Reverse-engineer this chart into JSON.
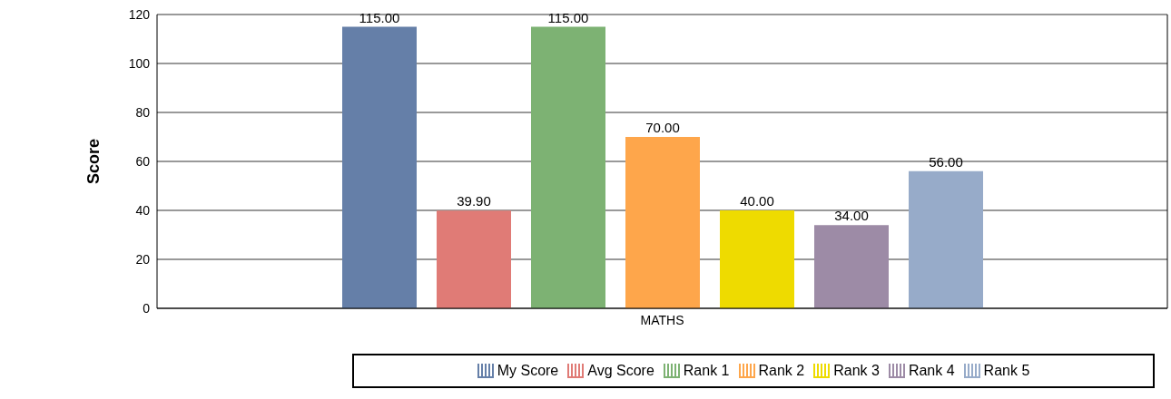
{
  "chart_data": {
    "type": "bar",
    "ylabel": "Score",
    "categories": [
      "MATHS"
    ],
    "series": [
      {
        "name": "My Score",
        "color": "#657fa8",
        "values": [
          115
        ],
        "value_labels": [
          "115.00"
        ]
      },
      {
        "name": "Avg Score",
        "color": "#e07b76",
        "values": [
          39.9
        ],
        "value_labels": [
          "39.90"
        ]
      },
      {
        "name": "Rank 1",
        "color": "#7db273",
        "values": [
          115
        ],
        "value_labels": [
          "115.00"
        ]
      },
      {
        "name": "Rank 2",
        "color": "#fea64b",
        "values": [
          70
        ],
        "value_labels": [
          "70.00"
        ]
      },
      {
        "name": "Rank 3",
        "color": "#eedb00",
        "values": [
          40
        ],
        "value_labels": [
          "40.00"
        ]
      },
      {
        "name": "Rank 4",
        "color": "#9d8ba6",
        "values": [
          34
        ],
        "value_labels": [
          "34.00"
        ]
      },
      {
        "name": "Rank 5",
        "color": "#97abc9",
        "values": [
          56
        ],
        "value_labels": [
          "56.00"
        ]
      }
    ],
    "ylim": [
      0,
      120
    ],
    "yticks": [
      0,
      20,
      40,
      60,
      80,
      100,
      120
    ],
    "grid": "y",
    "legend": "bottom"
  }
}
